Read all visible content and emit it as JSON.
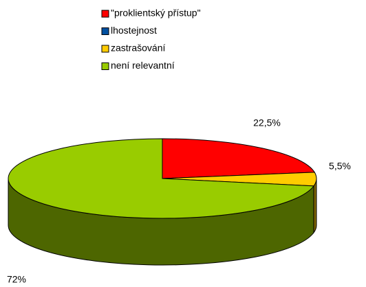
{
  "chart_data": {
    "type": "pie",
    "categories": [
      "\"proklientský přístup\"",
      "lhostejnost",
      "zastrašování",
      "není relevantní"
    ],
    "values": [
      22.5,
      0,
      5.5,
      72
    ],
    "value_labels": [
      "22,5%",
      null,
      "5,5%",
      "72%"
    ],
    "colors": [
      "#ff0000",
      "#0050a0",
      "#ffcc00",
      "#99cc00"
    ],
    "start_angle": 0,
    "direction": "clockwise",
    "legend": "top"
  }
}
